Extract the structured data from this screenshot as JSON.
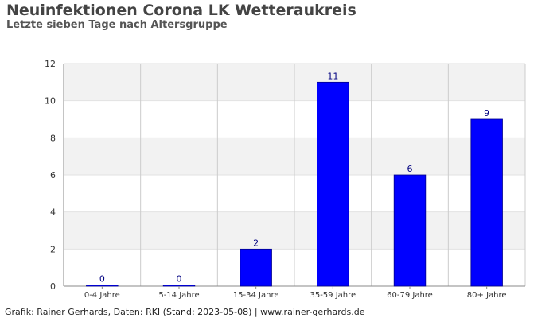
{
  "title": "Neuinfektionen Corona LK Wetteraukreis",
  "subtitle": "Letzte sieben Tage nach Altersgruppe",
  "footer": "Grafik: Rainer Gerhards, Daten: RKI (Stand: 2023-05-08) | www.rainer-gerhards.de",
  "colors": {
    "bar": "#0000ff",
    "band": "#f2f2f2",
    "grid": "#cccccc",
    "axis": "#888888",
    "tick_text": "#333333",
    "value_text": "#000080"
  },
  "chart_data": {
    "type": "bar",
    "title": "Neuinfektionen Corona LK Wetteraukreis",
    "subtitle": "Letzte sieben Tage nach Altersgruppe",
    "xlabel": "",
    "ylabel": "",
    "categories": [
      "0-4 Jahre",
      "5-14 Jahre",
      "15-34 Jahre",
      "35-59 Jahre",
      "60-79 Jahre",
      "80+ Jahre"
    ],
    "values": [
      0,
      0,
      2,
      11,
      6,
      9
    ],
    "ylim": [
      0,
      12
    ],
    "yticks": [
      0,
      2,
      4,
      6,
      8,
      10,
      12
    ],
    "grid": true,
    "legend": "none"
  }
}
